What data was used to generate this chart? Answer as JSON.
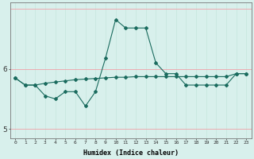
{
  "xlabel": "Humidex (Indice chaleur)",
  "x_values": [
    0,
    1,
    2,
    3,
    4,
    5,
    6,
    7,
    8,
    9,
    10,
    11,
    12,
    13,
    14,
    15,
    16,
    17,
    18,
    19,
    20,
    21,
    22,
    23
  ],
  "line1_y": [
    5.85,
    5.73,
    5.73,
    5.76,
    5.78,
    5.8,
    5.82,
    5.83,
    5.84,
    5.85,
    5.86,
    5.86,
    5.87,
    5.87,
    5.87,
    5.87,
    5.87,
    5.87,
    5.87,
    5.87,
    5.87,
    5.87,
    5.92,
    5.92
  ],
  "line2_y": [
    5.85,
    5.73,
    5.73,
    5.55,
    5.5,
    5.62,
    5.62,
    5.38,
    5.62,
    6.18,
    6.82,
    6.68,
    6.68,
    6.68,
    6.1,
    5.92,
    5.92,
    5.73,
    5.73,
    5.73,
    5.73,
    5.73,
    5.92,
    5.92
  ],
  "line_color": "#1a6b5e",
  "bg_color": "#d8f0ec",
  "grid_color_v": "#c8e8e0",
  "grid_color_h": "#f0a0a8",
  "ylim": [
    4.85,
    7.1
  ],
  "ytick_positions": [
    5.0,
    6.0
  ],
  "ytick_labels": [
    "5",
    "6"
  ],
  "figsize": [
    3.2,
    2.0
  ],
  "dpi": 100
}
